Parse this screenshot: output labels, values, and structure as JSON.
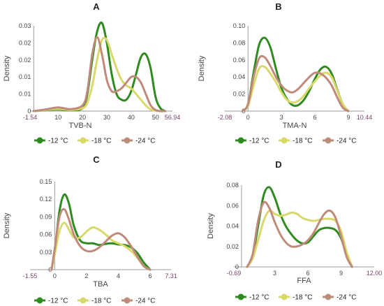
{
  "colors": {
    "-12 °C": "#2e8b1e",
    "-18 °C": "#d9d86a",
    "-24 °C": "#c08a7a"
  },
  "chart_data": [
    {
      "panel": "A",
      "type": "line",
      "xlabel": "TVB-N",
      "ylabel": "Density",
      "xlim": [
        -1.54,
        56.94
      ],
      "ylim": [
        0,
        0.03
      ],
      "xticks": [
        "-1.54",
        "10",
        "20",
        "30",
        "40",
        "50",
        "56.94"
      ],
      "yticks": [
        "0",
        "0.01",
        "0.01",
        "0.02",
        "0.02",
        "0.03"
      ],
      "legend": [
        "-12 °C",
        "-18 °C",
        "-24 °C"
      ],
      "series": [
        {
          "name": "-12 °C",
          "x": [
            0,
            5,
            10,
            15,
            20,
            22,
            24,
            26,
            28,
            30,
            32,
            34,
            36,
            38,
            40,
            42,
            44,
            46,
            48,
            50,
            52,
            54
          ],
          "y": [
            0,
            0.0003,
            0.0006,
            0.0003,
            0.001,
            0.006,
            0.018,
            0.028,
            0.031,
            0.024,
            0.013,
            0.006,
            0.004,
            0.004,
            0.007,
            0.013,
            0.019,
            0.02,
            0.015,
            0.005,
            0.001,
            0
          ]
        },
        {
          "name": "-18 °C",
          "x": [
            0,
            5,
            10,
            15,
            20,
            22,
            24,
            26,
            28,
            30,
            32,
            34,
            36,
            38,
            40,
            42,
            44,
            46,
            48,
            50,
            52,
            54
          ],
          "y": [
            0,
            0.0004,
            0.0008,
            0.0004,
            0.001,
            0.003,
            0.009,
            0.018,
            0.025,
            0.025,
            0.02,
            0.015,
            0.011,
            0.009,
            0.008,
            0.006,
            0.004,
            0.002,
            0.0006,
            0.0001,
            0,
            0
          ]
        },
        {
          "name": "-24 °C",
          "x": [
            0,
            5,
            10,
            15,
            20,
            22,
            24,
            26,
            28,
            30,
            32,
            34,
            36,
            38,
            40,
            42,
            44,
            46,
            48,
            50,
            52,
            54
          ],
          "y": [
            0,
            0.0006,
            0.0013,
            0.0007,
            0.002,
            0.007,
            0.02,
            0.026,
            0.02,
            0.011,
            0.007,
            0.007,
            0.008,
            0.01,
            0.012,
            0.012,
            0.01,
            0.006,
            0.002,
            0.0004,
            0,
            0
          ]
        }
      ]
    },
    {
      "panel": "B",
      "type": "line",
      "xlabel": "TMA-N",
      "ylabel": "Density",
      "xlim": [
        -2.08,
        10.44
      ],
      "ylim": [
        0,
        0.1
      ],
      "xticks": [
        "-2.08",
        "0",
        "3",
        "6",
        "9",
        "10.44"
      ],
      "yticks": [
        "0",
        "0.02",
        "0.04",
        "0.06",
        "0.08",
        "0.10"
      ],
      "legend": [
        "-12 °C",
        "-18 °C",
        "-24 °C"
      ],
      "series": [
        {
          "name": "-12 °C",
          "x": [
            -0.5,
            0,
            0.5,
            1,
            1.5,
            2,
            2.5,
            3,
            3.5,
            4,
            4.5,
            5,
            5.5,
            6,
            6.5,
            7,
            7.5,
            8,
            8.5,
            9
          ],
          "y": [
            0,
            0.008,
            0.045,
            0.078,
            0.086,
            0.075,
            0.05,
            0.027,
            0.014,
            0.007,
            0.007,
            0.013,
            0.024,
            0.038,
            0.049,
            0.052,
            0.044,
            0.025,
            0.008,
            0
          ]
        },
        {
          "name": "-18 °C",
          "x": [
            -0.5,
            0,
            0.5,
            1,
            1.5,
            2,
            2.5,
            3,
            3.5,
            4,
            4.5,
            5,
            5.5,
            6,
            6.5,
            7,
            7.5,
            8,
            8.5,
            9
          ],
          "y": [
            0,
            0.006,
            0.03,
            0.05,
            0.052,
            0.044,
            0.034,
            0.022,
            0.013,
            0.01,
            0.012,
            0.018,
            0.027,
            0.035,
            0.042,
            0.045,
            0.04,
            0.024,
            0.008,
            0
          ]
        },
        {
          "name": "-24 °C",
          "x": [
            -0.5,
            0,
            0.5,
            1,
            1.5,
            2,
            2.5,
            3,
            3.5,
            4,
            4.5,
            5,
            5.5,
            6,
            6.5,
            7,
            7.5,
            8,
            8.5,
            9
          ],
          "y": [
            0,
            0.008,
            0.04,
            0.062,
            0.063,
            0.053,
            0.04,
            0.03,
            0.024,
            0.022,
            0.026,
            0.033,
            0.04,
            0.045,
            0.044,
            0.039,
            0.03,
            0.016,
            0.004,
            0
          ]
        }
      ]
    },
    {
      "panel": "C",
      "type": "line",
      "xlabel": "TBA",
      "ylabel": "Density",
      "xlim": [
        -1.55,
        7.31
      ],
      "ylim": [
        0,
        0.15
      ],
      "xticks": [
        "-1.55",
        "0",
        "2",
        "4",
        "6",
        "7.31"
      ],
      "yticks": [
        "0",
        "0.03",
        "0.06",
        "0.09",
        "0.12",
        "0.15"
      ],
      "legend": [
        "-12 °C",
        "-18 °C",
        "-24 °C"
      ],
      "series": [
        {
          "name": "-12 °C",
          "x": [
            -0.2,
            0,
            0.3,
            0.6,
            0.9,
            1.2,
            1.6,
            2,
            2.4,
            2.8,
            3.2,
            3.6,
            4,
            4.4,
            4.8,
            5.2,
            5.6,
            6
          ],
          "y": [
            0,
            0.03,
            0.1,
            0.128,
            0.112,
            0.075,
            0.05,
            0.045,
            0.045,
            0.042,
            0.044,
            0.045,
            0.043,
            0.042,
            0.038,
            0.028,
            0.012,
            0
          ]
        },
        {
          "name": "-18 °C",
          "x": [
            -0.2,
            0,
            0.3,
            0.6,
            0.9,
            1.2,
            1.6,
            2,
            2.4,
            2.8,
            3.2,
            3.6,
            4,
            4.4,
            4.8,
            5.2,
            5.6,
            6
          ],
          "y": [
            0,
            0.025,
            0.066,
            0.08,
            0.068,
            0.055,
            0.055,
            0.065,
            0.072,
            0.068,
            0.06,
            0.05,
            0.045,
            0.04,
            0.032,
            0.02,
            0.006,
            0
          ]
        },
        {
          "name": "-24 °C",
          "x": [
            -0.2,
            0,
            0.3,
            0.6,
            0.9,
            1.2,
            1.6,
            2,
            2.4,
            2.8,
            3.2,
            3.6,
            4,
            4.4,
            4.8,
            5.2,
            5.6,
            6
          ],
          "y": [
            0,
            0.035,
            0.09,
            0.103,
            0.085,
            0.06,
            0.04,
            0.032,
            0.032,
            0.038,
            0.048,
            0.058,
            0.062,
            0.055,
            0.04,
            0.022,
            0.006,
            0
          ]
        }
      ]
    },
    {
      "panel": "D",
      "type": "line",
      "xlabel": "FFA",
      "ylabel": "Density",
      "xlim": [
        -0.69,
        12.0
      ],
      "ylim": [
        0,
        0.08
      ],
      "xticks": [
        "-0.69",
        "3",
        "6",
        "9",
        "12.00"
      ],
      "yticks": [
        "0",
        "0.02",
        "0.04",
        "0.06",
        "0.08"
      ],
      "legend": [
        "-12 °C",
        "-18 °C",
        "-24 °C"
      ],
      "series": [
        {
          "name": "-12 °C",
          "x": [
            0.5,
            1,
            1.5,
            2,
            2.5,
            3,
            3.5,
            4,
            4.5,
            5,
            5.5,
            6,
            6.5,
            7,
            7.5,
            8,
            8.5,
            9,
            9.5,
            10
          ],
          "y": [
            0,
            0.01,
            0.04,
            0.07,
            0.078,
            0.068,
            0.052,
            0.04,
            0.032,
            0.026,
            0.023,
            0.024,
            0.03,
            0.036,
            0.038,
            0.038,
            0.036,
            0.028,
            0.012,
            0
          ]
        },
        {
          "name": "-18 °C",
          "x": [
            0.5,
            1,
            1.5,
            2,
            2.5,
            3,
            3.5,
            4,
            4.5,
            5,
            5.5,
            6,
            6.5,
            7,
            7.5,
            8,
            8.5,
            9,
            9.5,
            10
          ],
          "y": [
            0,
            0.008,
            0.026,
            0.045,
            0.055,
            0.052,
            0.05,
            0.051,
            0.053,
            0.052,
            0.048,
            0.046,
            0.045,
            0.046,
            0.047,
            0.047,
            0.045,
            0.035,
            0.015,
            0
          ]
        },
        {
          "name": "-24 °C",
          "x": [
            0.5,
            1,
            1.5,
            2,
            2.5,
            3,
            3.5,
            4,
            4.5,
            5,
            5.5,
            6,
            6.5,
            7,
            7.5,
            8,
            8.5,
            9,
            9.5,
            10
          ],
          "y": [
            0,
            0.012,
            0.045,
            0.063,
            0.058,
            0.044,
            0.032,
            0.024,
            0.02,
            0.02,
            0.022,
            0.026,
            0.033,
            0.043,
            0.052,
            0.055,
            0.048,
            0.03,
            0.01,
            0
          ]
        }
      ]
    }
  ]
}
